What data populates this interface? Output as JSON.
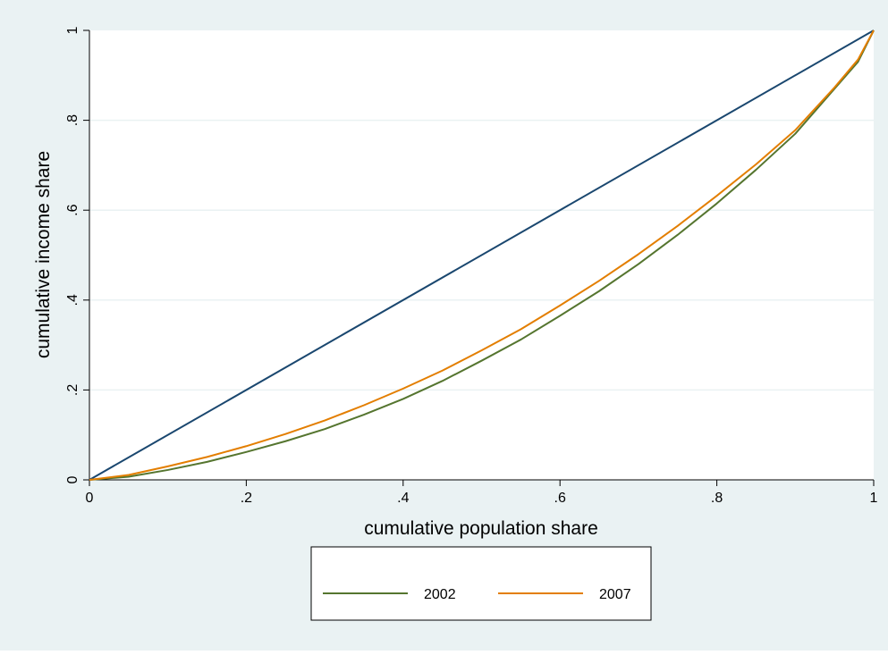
{
  "chart_data": {
    "type": "line",
    "title": "",
    "xlabel": "cumulative population share",
    "ylabel": "cumulative income share",
    "xlim": [
      0,
      1
    ],
    "ylim": [
      0,
      1
    ],
    "xticks": [
      0,
      0.2,
      0.4,
      0.6,
      0.8,
      1
    ],
    "yticks": [
      0,
      0.2,
      0.4,
      0.6,
      0.8,
      1
    ],
    "xtick_labels": [
      "0",
      ".2",
      ".4",
      ".6",
      ".8",
      "1"
    ],
    "ytick_labels": [
      "0",
      ".2",
      ".4",
      ".6",
      ".8",
      "1"
    ],
    "grid": "horizontal",
    "legend_position": "bottom",
    "colors": {
      "outer_background": "#eaf2f3",
      "plot_background": "#ffffff",
      "grid": "#eaf2f3"
    },
    "series": [
      {
        "name": "",
        "color": "#1a476f",
        "x": [
          0,
          1
        ],
        "y": [
          0,
          1
        ]
      },
      {
        "name": "2002",
        "color": "#55752f",
        "x": [
          0,
          0.05,
          0.1,
          0.15,
          0.2,
          0.25,
          0.3,
          0.35,
          0.4,
          0.45,
          0.5,
          0.55,
          0.6,
          0.65,
          0.7,
          0.75,
          0.8,
          0.85,
          0.9,
          0.95,
          0.98,
          1
        ],
        "y": [
          0,
          0.007,
          0.022,
          0.04,
          0.062,
          0.086,
          0.113,
          0.145,
          0.18,
          0.22,
          0.265,
          0.312,
          0.365,
          0.42,
          0.48,
          0.545,
          0.615,
          0.69,
          0.77,
          0.87,
          0.93,
          1
        ]
      },
      {
        "name": "2007",
        "color": "#e37e00",
        "x": [
          0,
          0.05,
          0.1,
          0.15,
          0.2,
          0.25,
          0.3,
          0.35,
          0.4,
          0.45,
          0.5,
          0.55,
          0.6,
          0.65,
          0.7,
          0.75,
          0.8,
          0.85,
          0.9,
          0.95,
          0.98,
          1
        ],
        "y": [
          0,
          0.011,
          0.03,
          0.051,
          0.075,
          0.102,
          0.132,
          0.166,
          0.203,
          0.243,
          0.288,
          0.335,
          0.388,
          0.443,
          0.502,
          0.565,
          0.632,
          0.702,
          0.778,
          0.873,
          0.935,
          1
        ]
      }
    ]
  }
}
